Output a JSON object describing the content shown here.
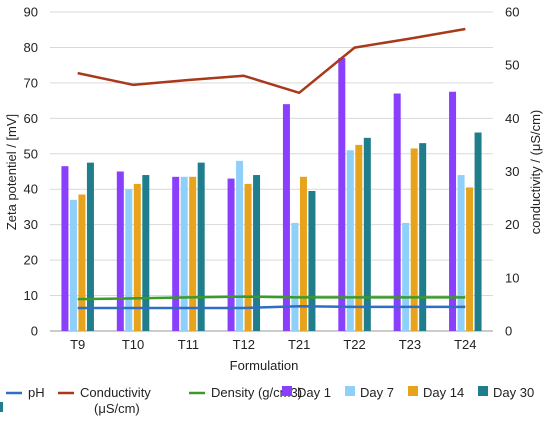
{
  "chart_data": {
    "type": "bar",
    "xlabel": "Formulation",
    "ylabel_left": "Zeta potentiel / [mV]",
    "ylabel_right": "conductivity / (μS/cm)",
    "ylim_left": [
      0,
      90
    ],
    "ylim_right": [
      0,
      60
    ],
    "yticks_left": [
      0,
      10,
      20,
      30,
      40,
      50,
      60,
      70,
      80,
      90
    ],
    "yticks_right": [
      0,
      10,
      20,
      30,
      40,
      50,
      60
    ],
    "grid": "horizontal",
    "legend_position": "bottom",
    "categories": [
      "T9",
      "T10",
      "T11",
      "T12",
      "T21",
      "T22",
      "T23",
      "T24"
    ],
    "bar_series": [
      {
        "name": "Day 1",
        "color": "#8a3ffc",
        "values": [
          46.5,
          45,
          43.5,
          43,
          64,
          77,
          67,
          67.5
        ]
      },
      {
        "name": "Day 7",
        "color": "#8fd0fa",
        "values": [
          37,
          40,
          43.5,
          48,
          30.5,
          51,
          30.5,
          44
        ]
      },
      {
        "name": "Day 14",
        "color": "#e8a31d",
        "values": [
          38.5,
          41.5,
          43.5,
          41.5,
          43.5,
          52.5,
          51.5,
          40.5
        ]
      },
      {
        "name": "Day 30",
        "color": "#1f7d8c",
        "values": [
          47.5,
          44,
          47.5,
          44,
          39.5,
          54.5,
          53,
          56
        ]
      }
    ],
    "line_series": [
      {
        "name": "pH",
        "color": "#2f6ec2",
        "axis": "left",
        "values": [
          6.5,
          6.5,
          6.5,
          6.5,
          7,
          6.8,
          6.8,
          6.8
        ]
      },
      {
        "name": "Conductivity (μS/cm)",
        "color": "#a83a1b",
        "axis": "right",
        "values": [
          48.5,
          46.3,
          47.2,
          48.0,
          44.8,
          53.3,
          55.0,
          56.8
        ]
      },
      {
        "name": "Density (g/cm3)",
        "color": "#3a9a2a",
        "axis": "left",
        "values": [
          9.0,
          9.2,
          9.5,
          9.7,
          9.5,
          9.5,
          9.5,
          9.5
        ]
      }
    ],
    "legend": [
      {
        "label": "pH",
        "kind": "line",
        "color": "#2f6ec2"
      },
      {
        "label": "Conductivity (μS/cm)",
        "kind": "line",
        "color": "#a83a1b"
      },
      {
        "label": "Density (g/cm3)",
        "kind": "line",
        "color": "#3a9a2a"
      },
      {
        "label": "Day 1",
        "kind": "box",
        "color": "#8a3ffc"
      },
      {
        "label": "Day 7",
        "kind": "box",
        "color": "#8fd0fa"
      },
      {
        "label": "Day 14",
        "kind": "box",
        "color": "#e8a31d"
      },
      {
        "label": "Day 30",
        "kind": "box",
        "color": "#1f7d8c"
      }
    ]
  }
}
